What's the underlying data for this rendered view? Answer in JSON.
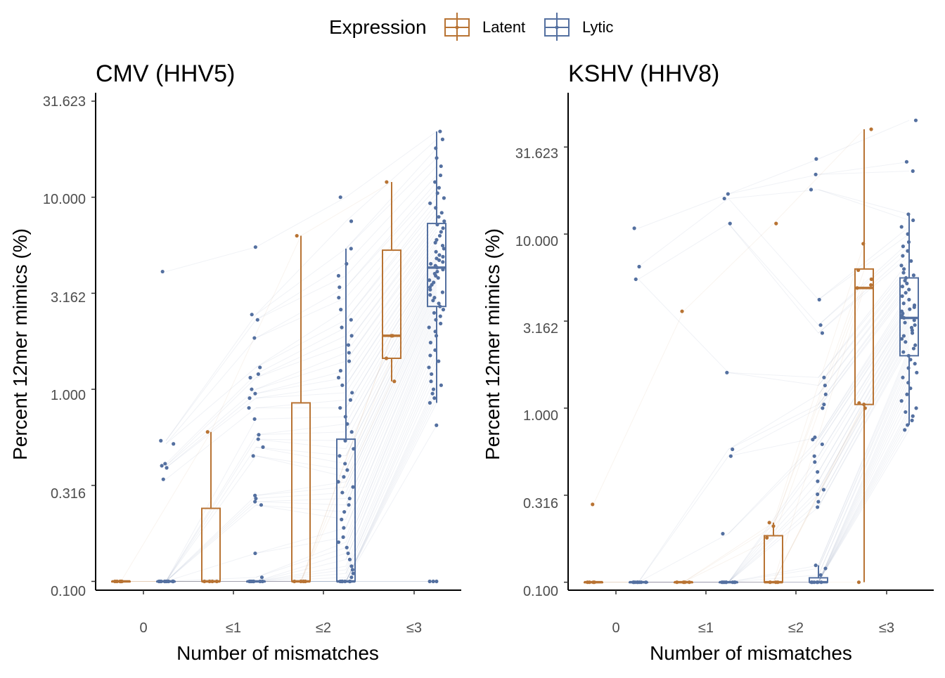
{
  "legend": {
    "title": "Expression",
    "items": [
      {
        "label": "Latent",
        "color": "#B87333"
      },
      {
        "label": "Lytic",
        "color": "#5470A0"
      }
    ]
  },
  "chart_data": [
    {
      "type": "box",
      "title": "CMV (HHV5)",
      "xlabel": "Number of mismatches",
      "ylabel": "Percent 12mer mimics (%)",
      "scale_y": "log10",
      "ylim": [
        0.09,
        31.623
      ],
      "ytick_values": [
        0.1,
        0.316,
        1.0,
        3.162,
        10.0,
        31.623
      ],
      "ytick_labels": [
        "0.100",
        "0.316",
        "1.000",
        "3.162",
        "10.000",
        "31.623"
      ],
      "categories": [
        "0",
        "≤1",
        "≤2",
        "≤3"
      ],
      "series": [
        {
          "name": "Latent",
          "boxes": [
            {
              "category": "0",
              "min": 0.1,
              "q1": 0.1,
              "median": 0.1,
              "q3": 0.1,
              "max": 0.1
            },
            {
              "category": "≤1",
              "min": 0.1,
              "q1": 0.1,
              "median": 0.1,
              "q3": 0.24,
              "max": 0.6
            },
            {
              "category": "≤2",
              "min": 0.1,
              "q1": 0.1,
              "median": 0.1,
              "q3": 0.85,
              "max": 6.3
            },
            {
              "category": "≤3",
              "min": 1.1,
              "q1": 1.45,
              "median": 1.9,
              "q3": 5.3,
              "max": 12.0
            }
          ],
          "points": [
            {
              "category": "0",
              "values": [
                0.1,
                0.1,
                0.1,
                0.1,
                0.1,
                0.1
              ]
            },
            {
              "category": "≤1",
              "values": [
                0.1,
                0.1,
                0.1,
                0.1,
                0.6
              ]
            },
            {
              "category": "≤2",
              "values": [
                0.1,
                0.1,
                0.1,
                0.1,
                6.3
              ]
            },
            {
              "category": "≤3",
              "values": [
                1.1,
                1.45,
                1.9,
                1.9,
                12.0
              ]
            }
          ]
        },
        {
          "name": "Lytic",
          "boxes": [
            {
              "category": "0",
              "min": 0.1,
              "q1": 0.1,
              "median": 0.1,
              "q3": 0.1,
              "max": 0.1
            },
            {
              "category": "≤1",
              "min": 0.1,
              "q1": 0.1,
              "median": 0.1,
              "q3": 0.1,
              "max": 0.1
            },
            {
              "category": "≤2",
              "min": 0.1,
              "q1": 0.1,
              "median": 0.1,
              "q3": 0.55,
              "max": 5.4
            },
            {
              "category": "≤3",
              "min": 0.85,
              "q1": 2.7,
              "median": 4.3,
              "q3": 7.3,
              "max": 22.0
            }
          ],
          "points": [
            {
              "category": "0",
              "values": [
                0.1,
                0.1,
                0.1,
                0.1,
                0.1,
                0.1,
                0.1,
                0.1,
                0.1,
                0.1,
                4.1,
                0.54,
                0.52,
                0.41,
                0.4,
                0.39,
                0.34
              ]
            },
            {
              "category": "≤1",
              "values": [
                0.1,
                0.1,
                0.1,
                0.1,
                0.1,
                0.1,
                0.1,
                0.105,
                5.5,
                2.45,
                2.3,
                1.85,
                1.3,
                1.2,
                1.15,
                1.0,
                0.95,
                0.9,
                0.8,
                0.7,
                0.58,
                0.55,
                0.5,
                0.45,
                0.28,
                0.27,
                0.26,
                0.25,
                0.14
              ]
            },
            {
              "category": "≤2",
              "values": [
                0.1,
                0.1,
                0.1,
                0.1,
                0.1,
                0.1,
                0.1,
                0.105,
                0.11,
                0.115,
                0.12,
                0.13,
                0.14,
                0.15,
                0.16,
                0.17,
                0.19,
                0.21,
                0.23,
                0.25,
                0.27,
                0.29,
                0.31,
                0.33,
                0.35,
                0.38,
                0.41,
                0.45,
                0.49,
                0.54,
                0.6,
                0.66,
                0.72,
                0.8,
                0.88,
                0.96,
                1.05,
                1.15,
                1.25,
                1.4,
                1.55,
                1.7,
                1.9,
                2.1,
                2.3,
                2.6,
                3.0,
                3.4,
                3.9,
                4.5,
                5.4,
                7.5,
                10.0
              ]
            },
            {
              "category": "≤3",
              "values": [
                0.1,
                0.1,
                0.1,
                0.65,
                0.85,
                0.9,
                0.95,
                1.0,
                1.05,
                1.1,
                1.2,
                1.3,
                1.4,
                1.5,
                1.6,
                1.75,
                1.9,
                2.0,
                2.1,
                2.2,
                2.3,
                2.4,
                2.5,
                2.6,
                2.7,
                2.8,
                2.9,
                3.0,
                3.1,
                3.2,
                3.3,
                3.4,
                3.5,
                3.6,
                3.7,
                3.8,
                3.9,
                4.0,
                4.1,
                4.2,
                4.3,
                4.4,
                4.5,
                4.6,
                4.7,
                4.8,
                4.9,
                5.0,
                5.2,
                5.4,
                5.6,
                5.8,
                6.0,
                6.3,
                6.6,
                6.9,
                7.2,
                7.5,
                7.9,
                8.3,
                8.8,
                9.3,
                9.9,
                10.5,
                11.2,
                12.0,
                13.0,
                14.5,
                16.0,
                18.0,
                20.0,
                22.0
              ]
            }
          ]
        }
      ]
    },
    {
      "type": "box",
      "title": "KSHV (HHV8)",
      "xlabel": "Number of mismatches",
      "ylabel": "Percent 12mer mimics (%)",
      "scale_y": "log10",
      "ylim": [
        0.09,
        58.0
      ],
      "ytick_values": [
        0.1,
        0.316,
        1.0,
        3.162,
        10.0,
        31.623
      ],
      "ytick_labels": [
        "0.100",
        "0.316",
        "1.000",
        "3.162",
        "10.000",
        "31.623"
      ],
      "categories": [
        "0",
        "≤1",
        "≤2",
        "≤3"
      ],
      "series": [
        {
          "name": "Latent",
          "boxes": [
            {
              "category": "0",
              "min": 0.1,
              "q1": 0.1,
              "median": 0.1,
              "q3": 0.1,
              "max": 0.1
            },
            {
              "category": "≤1",
              "min": 0.1,
              "q1": 0.1,
              "median": 0.1,
              "q3": 0.1,
              "max": 0.1
            },
            {
              "category": "≤2",
              "min": 0.1,
              "q1": 0.1,
              "median": 0.1,
              "q3": 0.185,
              "max": 0.22
            },
            {
              "category": "≤3",
              "min": 0.1,
              "q1": 1.05,
              "median": 4.9,
              "q3": 6.3,
              "max": 40.0
            }
          ],
          "points": [
            {
              "category": "0",
              "values": [
                0.1,
                0.1,
                0.1,
                0.1,
                0.28
              ]
            },
            {
              "category": "≤1",
              "values": [
                0.1,
                0.1,
                0.1,
                0.1,
                3.6
              ]
            },
            {
              "category": "≤2",
              "values": [
                0.1,
                0.1,
                0.1,
                0.18,
                0.21,
                0.22,
                11.5
              ]
            },
            {
              "category": "≤3",
              "values": [
                0.1,
                1.0,
                1.05,
                1.07,
                4.9,
                5.1,
                5.5,
                6.2,
                8.8,
                40.0
              ]
            }
          ]
        },
        {
          "name": "Lytic",
          "boxes": [
            {
              "category": "0",
              "min": 0.1,
              "q1": 0.1,
              "median": 0.1,
              "q3": 0.1,
              "max": 0.1
            },
            {
              "category": "≤1",
              "min": 0.1,
              "q1": 0.1,
              "median": 0.1,
              "q3": 0.1,
              "max": 0.1
            },
            {
              "category": "≤2",
              "min": 0.1,
              "q1": 0.1,
              "median": 0.1,
              "q3": 0.106,
              "max": 0.125
            },
            {
              "category": "≤3",
              "min": 0.8,
              "q1": 2.0,
              "median": 3.3,
              "q3": 5.6,
              "max": 13.0
            }
          ],
          "points": [
            {
              "category": "0",
              "values": [
                0.1,
                0.1,
                0.1,
                0.1,
                0.1,
                0.1,
                0.1,
                0.1,
                10.8,
                6.5,
                5.5
              ]
            },
            {
              "category": "≤1",
              "values": [
                0.1,
                0.1,
                0.1,
                0.1,
                0.1,
                0.1,
                0.1,
                0.1,
                17.0,
                16.0,
                11.5,
                1.6,
                0.58,
                0.53,
                0.19
              ]
            },
            {
              "category": "≤2",
              "values": [
                0.1,
                0.1,
                0.1,
                0.1,
                0.1,
                0.1,
                0.11,
                0.12,
                0.125,
                0.27,
                0.29,
                0.32,
                0.34,
                0.38,
                0.43,
                0.49,
                0.53,
                0.62,
                0.66,
                0.68,
                1.0,
                1.05,
                1.2,
                1.35,
                1.5,
                2.7,
                3.0,
                4.2,
                18.0,
                22.0,
                27.0
              ]
            },
            {
              "category": "≤3",
              "values": [
                0.75,
                0.8,
                0.85,
                0.9,
                0.95,
                1.0,
                1.1,
                1.2,
                1.3,
                1.4,
                1.5,
                1.6,
                1.7,
                1.8,
                1.9,
                2.0,
                2.1,
                2.2,
                2.3,
                2.4,
                2.5,
                2.6,
                2.7,
                2.8,
                2.9,
                3.0,
                3.1,
                3.2,
                3.3,
                3.4,
                3.5,
                3.6,
                3.7,
                3.8,
                3.9,
                4.0,
                4.2,
                4.4,
                4.6,
                4.8,
                5.0,
                5.2,
                5.4,
                5.6,
                5.8,
                6.0,
                6.3,
                6.6,
                7.0,
                7.5,
                8.0,
                8.5,
                9.0,
                10.0,
                11.0,
                12.0,
                13.0,
                23.0,
                26.0,
                45.0
              ]
            }
          ]
        }
      ]
    }
  ]
}
